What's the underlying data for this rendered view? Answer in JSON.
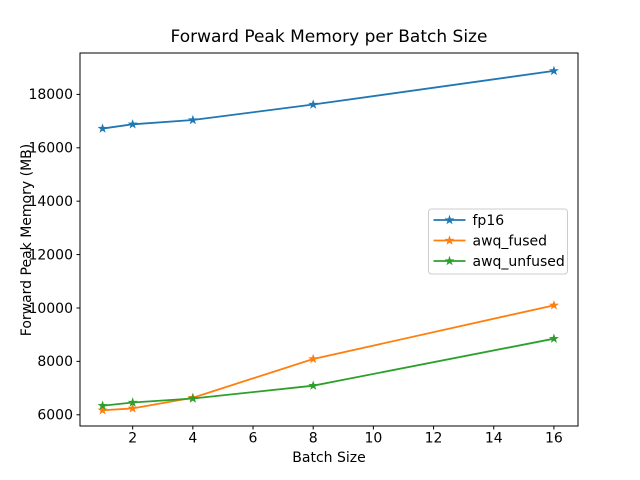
{
  "figure": {
    "background": "#ffffff",
    "text_color": "#000000",
    "spine_color": "#000000"
  },
  "chart_data": {
    "type": "line",
    "title": "Forward Peak Memory per Batch Size",
    "xlabel": "Batch Size",
    "ylabel": "Forward Peak Memory (MB)",
    "x": [
      1,
      2,
      4,
      8,
      16
    ],
    "series": [
      {
        "name": "fp16",
        "color": "#1f77b4",
        "marker": "star",
        "values": [
          16720,
          16880,
          17040,
          17620,
          18880
        ]
      },
      {
        "name": "awq_fused",
        "color": "#ff7f0e",
        "marker": "star",
        "values": [
          6170,
          6240,
          6640,
          8090,
          10100
        ]
      },
      {
        "name": "awq_unfused",
        "color": "#2ca02c",
        "marker": "star",
        "values": [
          6340,
          6460,
          6610,
          7090,
          8850
        ]
      }
    ],
    "xticks": [
      2,
      4,
      6,
      8,
      10,
      12,
      14,
      16
    ],
    "yticks": [
      6000,
      8000,
      10000,
      12000,
      14000,
      16000,
      18000
    ],
    "xlim": [
      0.25,
      16.8
    ],
    "ylim": [
      5580,
      19550
    ],
    "grid": false,
    "legend": {
      "position": "center-right",
      "entries": [
        "fp16",
        "awq_fused",
        "awq_unfused"
      ],
      "border_color": "#cccccc",
      "background": "#ffffff"
    }
  }
}
